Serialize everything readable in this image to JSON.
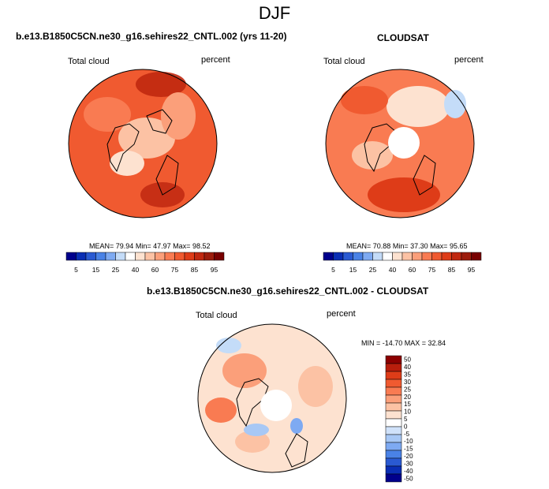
{
  "figure": {
    "season": "DJF",
    "model_case": "b.e13.B1850C5CN.ne30_g16.sehires22_CNTL.002 (yrs 11-20)",
    "obs_name": "CLOUDSAT",
    "diff_title": "b.e13.B1850C5CN.ne30_g16.sehires22_CNTL.002 - CLOUDSAT",
    "variable": "Total cloud",
    "units": "percent"
  },
  "colors": {
    "abs_scale": [
      "#00008c",
      "#0a2eb4",
      "#2a5ad2",
      "#4a82e6",
      "#7eaaf2",
      "#c4dcf8",
      "#ffffff",
      "#fde2d0",
      "#fcc2a4",
      "#fb9f7a",
      "#f97b52",
      "#f05a30",
      "#de3c18",
      "#c02810",
      "#9c1c0c",
      "#780000"
    ],
    "diff_scale": [
      "#00008c",
      "#0a2eb4",
      "#2a5ad2",
      "#4a82e6",
      "#7eaaf2",
      "#a8c8f5",
      "#d0e2fa",
      "#ffffff",
      "#fde2d0",
      "#fcc2a4",
      "#fb9f7a",
      "#f97b52",
      "#f05a30",
      "#de3c18",
      "#b81e0c",
      "#8c0000"
    ]
  },
  "chart_data": [
    {
      "type": "heatmap",
      "projection": "north-polar-stereographic",
      "title": "b.e13.B1850C5CN.ne30_g16.sehires22_CNTL.002 (yrs 11-20)",
      "left_label": "Total cloud",
      "right_label": "percent",
      "stats": {
        "mean": 79.94,
        "min": 47.97,
        "max": 98.52
      },
      "stats_text": {
        "mean_label": "MEAN=",
        "mean": "79.94",
        "min_label": "Min=",
        "min": "47.97",
        "max_label": "Max=",
        "max": "98.52"
      },
      "colorbar": {
        "tick_labels": [
          "5",
          "15",
          "25",
          "40",
          "60",
          "75",
          "85",
          "95"
        ],
        "levels": [
          5,
          10,
          15,
          20,
          25,
          30,
          40,
          50,
          60,
          70,
          75,
          80,
          85,
          90,
          95
        ],
        "orientation": "horizontal"
      }
    },
    {
      "type": "heatmap",
      "projection": "north-polar-stereographic",
      "title": "CLOUDSAT",
      "left_label": "Total cloud",
      "right_label": "percent",
      "stats": {
        "mean": 70.88,
        "min": 37.3,
        "max": 95.65
      },
      "stats_text": {
        "mean_label": "MEAN=",
        "mean": "70.88",
        "min_label": "Min=",
        "min": "37.30",
        "max_label": "Max=",
        "max": "95.65"
      },
      "colorbar": {
        "tick_labels": [
          "5",
          "15",
          "25",
          "40",
          "60",
          "75",
          "85",
          "95"
        ],
        "levels": [
          5,
          10,
          15,
          20,
          25,
          30,
          40,
          50,
          60,
          70,
          75,
          80,
          85,
          90,
          95
        ],
        "orientation": "horizontal"
      },
      "missing_pole": true
    },
    {
      "type": "heatmap",
      "projection": "north-polar-stereographic",
      "title": "b.e13.B1850C5CN.ne30_g16.sehires22_CNTL.002 - CLOUDSAT",
      "left_label": "Total cloud",
      "right_label": "percent",
      "stats": {
        "min": -14.7,
        "max": 32.84
      },
      "stats_text": "MIN = -14.70 MAX =  32.84",
      "colorbar": {
        "tick_labels": [
          "50",
          "40",
          "35",
          "30",
          "25",
          "20",
          "15",
          "10",
          "5",
          "0",
          "-5",
          "-10",
          "-15",
          "-20",
          "-30",
          "-40",
          "-50"
        ],
        "levels": [
          -50,
          -40,
          -30,
          -20,
          -15,
          -10,
          -5,
          0,
          5,
          10,
          15,
          20,
          25,
          30,
          35,
          40,
          50
        ],
        "orientation": "vertical"
      },
      "missing_pole": true
    }
  ]
}
